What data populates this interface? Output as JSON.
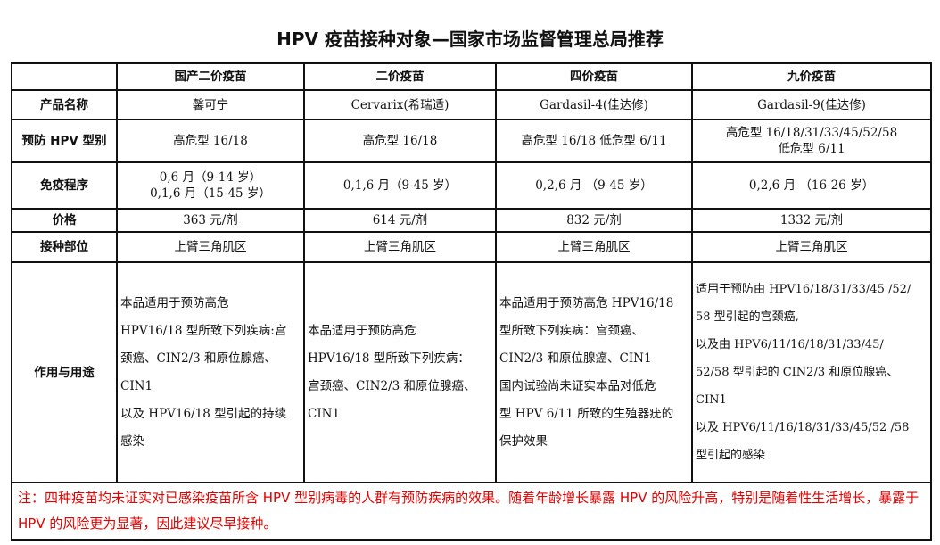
{
  "title": "HPV 疫苗接种对象—国家市场监督管理总局推荐",
  "columns": [
    "",
    "国产二价疫苗",
    "二价疫苗",
    "四价疫苗",
    "九价疫苗"
  ],
  "rows": [
    {
      "label": "产品名称",
      "cells": [
        "馨可宁",
        "Cervarix(希瑞适)",
        "Gardasil-4(佳达修)",
        "Gardasil-9(佳达修)"
      ]
    },
    {
      "label": "预防 HPV 型别",
      "cells": [
        "高危型 16/18",
        "高危型 16/18",
        "高危型 16/18  低危型 6/11",
        "高危型 16/18/31/33/45/52/58\n低危型 6/11"
      ]
    },
    {
      "label": "免疫程序",
      "cells": [
        "0,6 月（9-14 岁）\n0,1,6 月（15-45 岁）",
        "0,1,6 月（9-45 岁）",
        "0,2,6 月 （9-45 岁）",
        "0,2,6 月 （16-26 岁）"
      ]
    },
    {
      "label": "价格",
      "cells": [
        "363 元/剂",
        "614 元/剂",
        "832 元/剂",
        "1332 元/剂"
      ]
    },
    {
      "label": "接种部位",
      "cells": [
        "上臂三角肌区",
        "上臂三角肌区",
        "上臂三角肌区",
        "上臂三角肌区"
      ]
    },
    {
      "label": "作用与用途",
      "cells": [
        "本品适用于预防高危\nHPV16/18 型所致下列疾病:宫\n颈癌、CIN2/3 和原位腺癌、\nCIN1\n以及 HPV16/18 型引起的持续\n感染",
        "本品适用于预防高危\nHPV16/18 型所致下列疾病：\n宫颈癌、CIN2/3 和原位腺癌、\nCIN1",
        "本品适用于预防高危 HPV16/18\n型所致下列疾病：宫颈癌、\nCIN2/3 和原位腺癌、CIN1\n国内试验尚未证实本品对低危\n型 HPV 6/11 所致的生殖器疣的\n保护效果",
        "适用于预防由 HPV16/18/31/33/45 /52/\n58 型引起的宫颈癌,\n以及由 HPV6/11/16/18/31/33/45/\n52/58 型引起的 CIN2/3 和原位腺癌、\nCIN1\n以及 HPV6/11/16/18/31/33/45/52 /58\n型引起的感染"
      ]
    }
  ],
  "note": "注：四种疫苗均未证实对已感染疫苗所含 HPV 型别病毒的人群有预防疾病的效果。随着年龄增长暴露 HPV 的风险升高，特别是随着性生活增长，暴露于 HPV 的风险更为显著，因此建议尽早接种。",
  "colors": {
    "note": "#e00000",
    "border": "#111111"
  }
}
